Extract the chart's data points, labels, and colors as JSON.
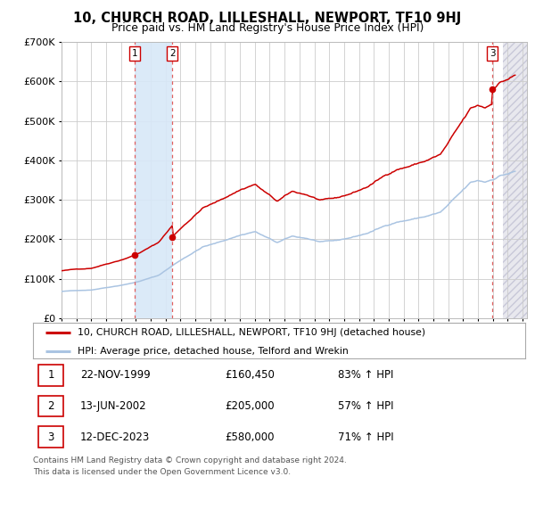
{
  "title": "10, CHURCH ROAD, LILLESHALL, NEWPORT, TF10 9HJ",
  "subtitle": "Price paid vs. HM Land Registry's House Price Index (HPI)",
  "legend_line1": "10, CHURCH ROAD, LILLESHALL, NEWPORT, TF10 9HJ (detached house)",
  "legend_line2": "HPI: Average price, detached house, Telford and Wrekin",
  "footer1": "Contains HM Land Registry data © Crown copyright and database right 2024.",
  "footer2": "This data is licensed under the Open Government Licence v3.0.",
  "transactions": [
    {
      "num": 1,
      "date": "22-NOV-1999",
      "price": 160450,
      "price_str": "£160,450",
      "pct": "83% ↑ HPI",
      "year": 1999.92
    },
    {
      "num": 2,
      "date": "13-JUN-2002",
      "price": 205000,
      "price_str": "£205,000",
      "pct": "57% ↑ HPI",
      "year": 2002.45
    },
    {
      "num": 3,
      "date": "12-DEC-2023",
      "price": 580000,
      "price_str": "£580,000",
      "pct": "71% ↑ HPI",
      "year": 2023.96
    }
  ],
  "hpi_color": "#aac4e2",
  "price_color": "#cc0000",
  "shade_color": "#d8e8f8",
  "vline_color": "#e06060",
  "grid_color": "#cccccc",
  "ylim": [
    0,
    700000
  ],
  "xlim_start": 1995.0,
  "xlim_end": 2026.3
}
